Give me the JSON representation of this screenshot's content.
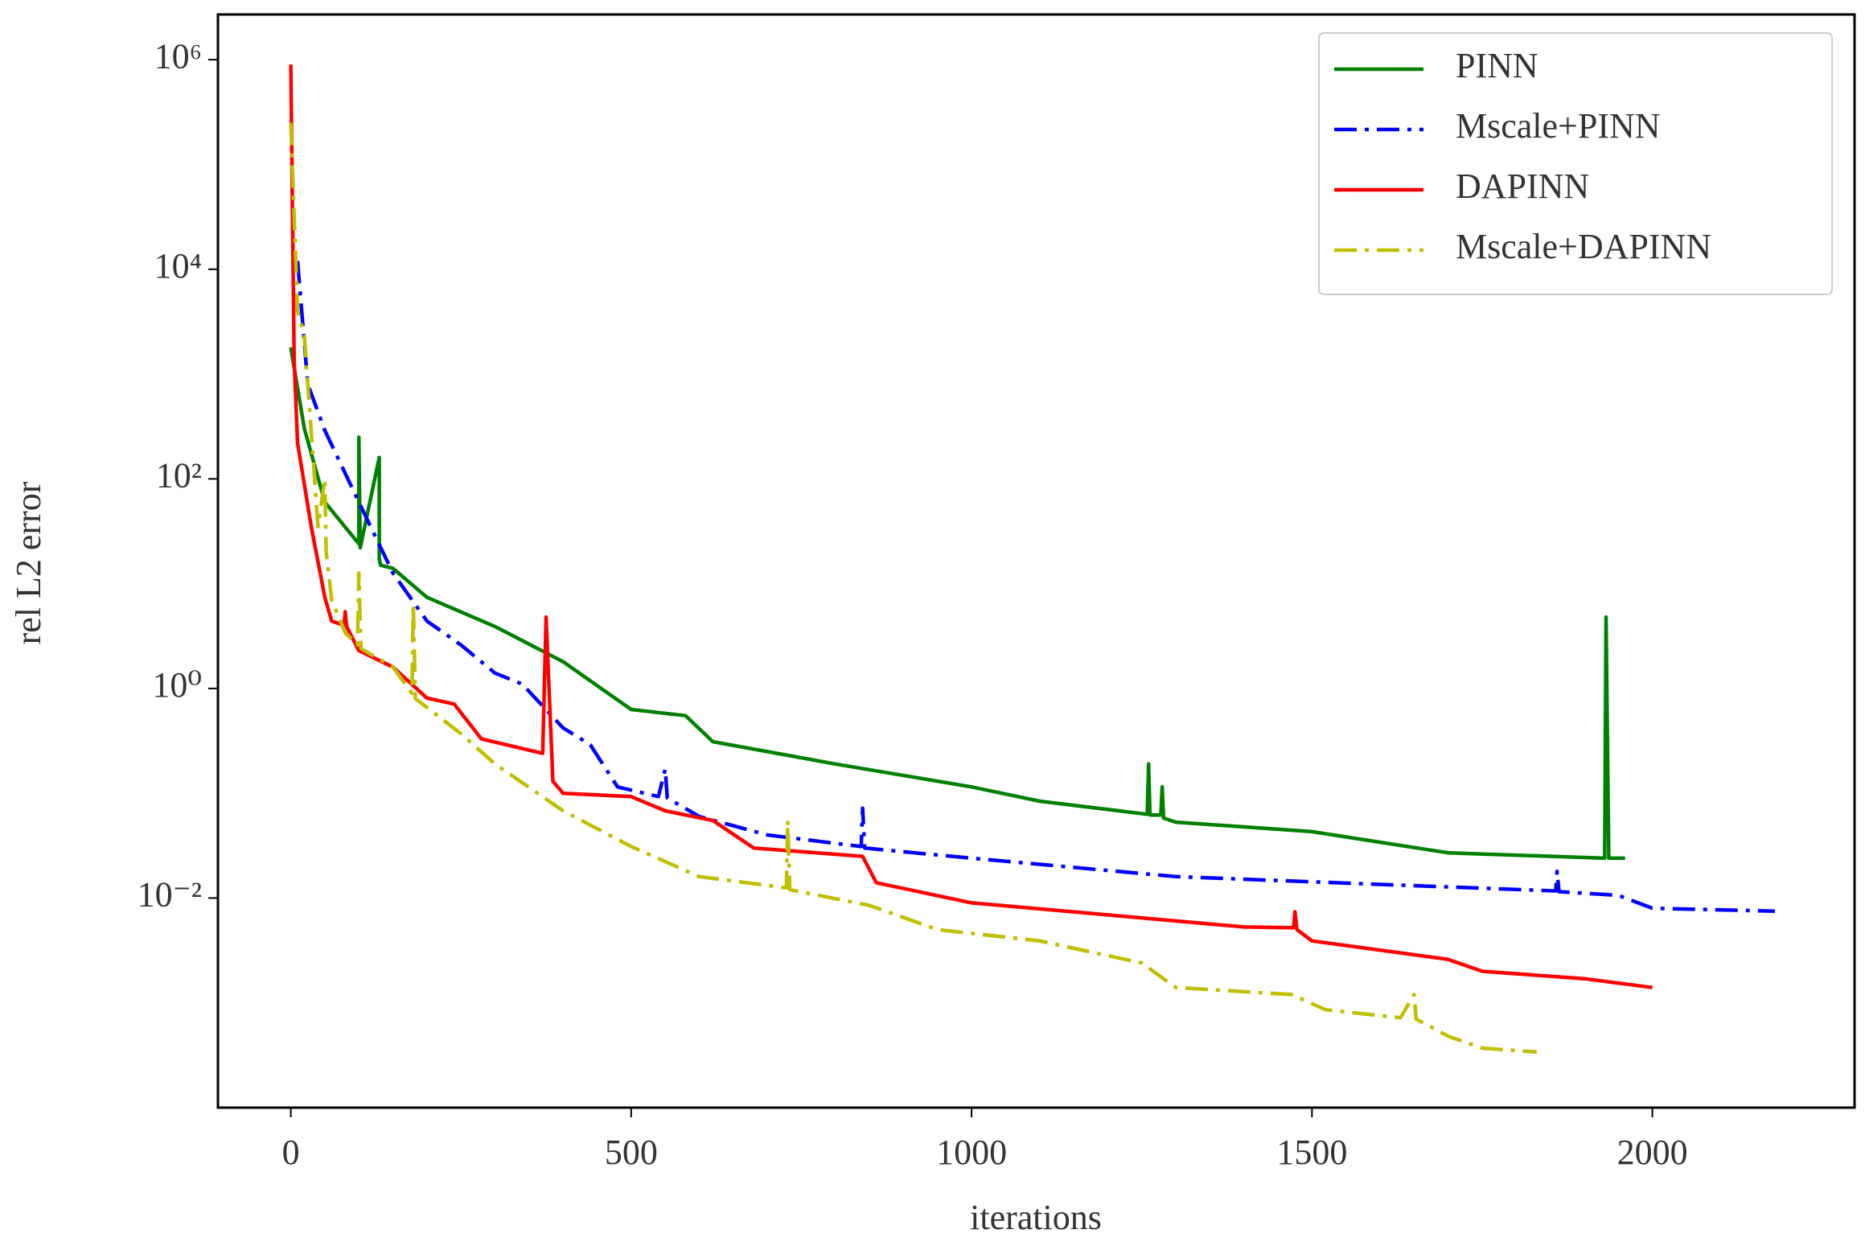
{
  "chart_data": {
    "type": "line",
    "xlabel": "iterations",
    "ylabel": "rel L2 error",
    "xlim": [
      -107,
      2297
    ],
    "ylim": [
      0.0001,
      2700000
    ],
    "yscale": "log",
    "xticks": [
      0,
      500,
      1000,
      1500,
      2000
    ],
    "yticks": [
      {
        "value": 0.01,
        "label": "10⁻²"
      },
      {
        "value": 1,
        "label": "10⁰"
      },
      {
        "value": 100,
        "label": "10²"
      },
      {
        "value": 10000,
        "label": "10⁴"
      },
      {
        "value": 1000000,
        "label": "10⁶"
      }
    ],
    "legend": "upper right",
    "series": [
      {
        "name": "PINN",
        "color": "#008000",
        "linestyle": "solid",
        "x": [
          0,
          20,
          50,
          100,
          100,
          102,
          130,
          130,
          132,
          150,
          200,
          300,
          400,
          500,
          580,
          620,
          800,
          1000,
          1100,
          1258,
          1260,
          1262,
          1278,
          1280,
          1282,
          1300,
          1500,
          1700,
          1930,
          1932,
          1936,
          1960
        ],
        "values": [
          1800,
          300,
          60,
          24,
          250,
          22,
          160,
          17,
          15,
          14,
          7.4,
          3.9,
          1.8,
          0.63,
          0.55,
          0.31,
          0.19,
          0.115,
          0.084,
          0.063,
          0.19,
          0.062,
          0.062,
          0.115,
          0.058,
          0.053,
          0.043,
          0.027,
          0.024,
          4.8,
          0.024,
          0.024
        ]
      },
      {
        "name": "Mscale+PINN",
        "color": "#0000ff",
        "linestyle": "dashdot",
        "x": [
          10,
          25,
          50,
          100,
          150,
          200,
          250,
          300,
          340,
          400,
          440,
          480,
          540,
          550,
          553,
          600,
          700,
          838,
          840,
          843,
          1000,
          1300,
          1600,
          1858,
          1860,
          1863,
          1950,
          2000,
          2180
        ],
        "values": [
          12000,
          800,
          290,
          60,
          12.6,
          4.4,
          2.6,
          1.4,
          1.1,
          0.42,
          0.29,
          0.115,
          0.093,
          0.17,
          0.09,
          0.06,
          0.04,
          0.031,
          0.072,
          0.03,
          0.024,
          0.016,
          0.0135,
          0.0117,
          0.018,
          0.0115,
          0.0106,
          0.008,
          0.0075
        ]
      },
      {
        "name": "DAPINN",
        "color": "#ff0000",
        "linestyle": "solid",
        "x": [
          0,
          5,
          10,
          30,
          50,
          60,
          78,
          80,
          82,
          100,
          150,
          200,
          240,
          280,
          370,
          375,
          385,
          400,
          500,
          550,
          620,
          680,
          840,
          860,
          1000,
          1200,
          1400,
          1473,
          1475,
          1478,
          1500,
          1700,
          1750,
          1900,
          2000
        ],
        "values": [
          900000,
          1300,
          220,
          35,
          7.4,
          4.4,
          4,
          5.4,
          3.9,
          2.3,
          1.6,
          0.81,
          0.71,
          0.33,
          0.24,
          4.8,
          0.13,
          0.1,
          0.093,
          0.068,
          0.055,
          0.03,
          0.025,
          0.014,
          0.009,
          0.0069,
          0.0053,
          0.0052,
          0.0074,
          0.005,
          0.0039,
          0.0026,
          0.002,
          0.0017,
          0.0014
        ]
      },
      {
        "name": "Mscale+DAPINN",
        "color": "#bfbf00",
        "linestyle": "dashdot",
        "x": [
          0,
          10,
          20,
          40,
          50,
          52,
          60,
          80,
          98,
          100,
          103,
          150,
          178,
          180,
          183,
          250,
          300,
          400,
          500,
          600,
          728,
          730,
          733,
          850,
          950,
          1100,
          1250,
          1300,
          1470,
          1520,
          1630,
          1650,
          1653,
          1700,
          1750,
          1830
        ],
        "values": [
          250000,
          4000,
          2300,
          35,
          100,
          20,
          7,
          3.4,
          2.6,
          12.6,
          2.4,
          1.6,
          0.9,
          6.5,
          0.8,
          0.37,
          0.19,
          0.068,
          0.031,
          0.016,
          0.0125,
          0.055,
          0.012,
          0.0085,
          0.005,
          0.0039,
          0.0024,
          0.0014,
          0.0012,
          0.00086,
          0.00072,
          0.0012,
          0.0007,
          0.00048,
          0.00037,
          0.00034
        ]
      }
    ]
  }
}
